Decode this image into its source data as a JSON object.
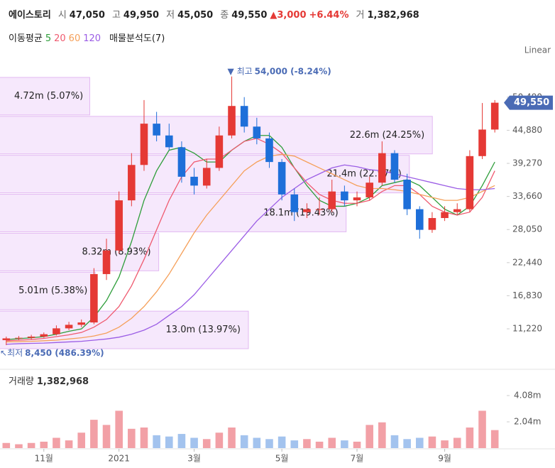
{
  "header": {
    "name": "에이스토리",
    "open_label": "시",
    "open": "47,050",
    "high_label": "고",
    "high": "49,950",
    "low_label": "저",
    "low": "45,050",
    "close_label": "종",
    "close": "49,550",
    "change": "▲3,000",
    "change_pct": "+6.44%",
    "volume_label": "거",
    "volume": "1,382,968",
    "ma_label": "이동평균",
    "profile_label": "매물분석도(7)",
    "scale": "Linear"
  },
  "chart_data": {
    "type": "candlestick",
    "categories": [
      null,
      null,
      null,
      "11월",
      null,
      null,
      null,
      null,
      null,
      "2021",
      null,
      null,
      null,
      null,
      null,
      "3월",
      null,
      null,
      null,
      null,
      null,
      null,
      "5월",
      null,
      null,
      null,
      null,
      null,
      "7월",
      null,
      null,
      null,
      null,
      null,
      null,
      "9월",
      null,
      null,
      null,
      null
    ],
    "open": [
      9300,
      9600,
      9700,
      9900,
      10300,
      11300,
      11900,
      12300,
      20500,
      24500,
      33000,
      39000,
      46000,
      44000,
      42000,
      37000,
      35500,
      38500,
      44000,
      49000,
      45500,
      43500,
      39500,
      34000,
      31000,
      31500,
      31500,
      34500,
      33000,
      33500,
      36000,
      41000,
      36500,
      31500,
      28000,
      30000,
      31000,
      31500,
      40500,
      45000
    ],
    "high": [
      9900,
      10000,
      10200,
      10600,
      11800,
      12400,
      12800,
      21500,
      26500,
      34500,
      41000,
      50000,
      48000,
      46000,
      43000,
      38500,
      40000,
      45500,
      54000,
      50500,
      47000,
      44500,
      40000,
      35000,
      32500,
      33500,
      36500,
      35500,
      34500,
      37000,
      43000,
      41500,
      37500,
      32000,
      31000,
      32000,
      32500,
      41500,
      49500,
      50000
    ],
    "low": [
      8450,
      9300,
      9400,
      9700,
      10100,
      11000,
      11500,
      12000,
      19500,
      24000,
      32000,
      38000,
      43000,
      41500,
      36000,
      34000,
      35000,
      38000,
      43500,
      44500,
      42500,
      38500,
      33000,
      29500,
      30000,
      30500,
      31000,
      32000,
      32000,
      33000,
      35500,
      36000,
      30500,
      26500,
      27500,
      29500,
      30500,
      31000,
      40000,
      44500
    ],
    "close": [
      9600,
      9700,
      9900,
      10300,
      11300,
      11900,
      12300,
      20500,
      24500,
      33000,
      39000,
      46000,
      44000,
      42000,
      37000,
      35500,
      38500,
      44000,
      49000,
      45500,
      43500,
      39500,
      34000,
      31000,
      31500,
      31500,
      34500,
      33000,
      33500,
      36000,
      41000,
      36500,
      31500,
      28000,
      30000,
      31000,
      31500,
      40500,
      45000,
      49550
    ],
    "up_color": "#e53935",
    "down_color": "#1e6fd9",
    "ylim": [
      4360,
      59740
    ],
    "yticks": [
      {
        "value": 11220,
        "label": "11,220"
      },
      {
        "value": 16830,
        "label": "16,830"
      },
      {
        "value": 22440,
        "label": "22,440"
      },
      {
        "value": 28050,
        "label": "28,050"
      },
      {
        "value": 33660,
        "label": "33,660"
      },
      {
        "value": 39270,
        "label": "39,270"
      },
      {
        "value": 44880,
        "label": "44,880"
      },
      {
        "value": 50490,
        "label": "50,490"
      }
    ],
    "series": [
      {
        "name": "5",
        "color": "#2e9e3a",
        "values": [
          9400,
          9550,
          9700,
          9900,
          10300,
          10800,
          11200,
          13200,
          16000,
          20000,
          26000,
          33000,
          38000,
          41500,
          42000,
          41000,
          39500,
          39500,
          41500,
          43000,
          44000,
          44000,
          42000,
          38500,
          35500,
          33000,
          32000,
          32000,
          32500,
          33500,
          35500,
          36000,
          36500,
          35500,
          33500,
          31500,
          30500,
          32000,
          35500,
          39500
        ]
      },
      {
        "name": "20",
        "color": "#ef5a6f",
        "values": [
          9200,
          9300,
          9400,
          9600,
          9900,
          10200,
          10600,
          11500,
          12800,
          15000,
          18500,
          23000,
          28000,
          33000,
          37000,
          39500,
          40000,
          40000,
          41500,
          43000,
          43500,
          42500,
          41000,
          38500,
          36000,
          34000,
          33000,
          32500,
          32500,
          33000,
          34500,
          35500,
          35500,
          34000,
          32000,
          31000,
          30500,
          31000,
          33500,
          38000
        ]
      },
      {
        "name": "60",
        "color": "#f5a05a",
        "values": [
          9000,
          9050,
          9100,
          9200,
          9300,
          9500,
          9700,
          10000,
          10500,
          11500,
          13000,
          15000,
          17500,
          20500,
          24000,
          27500,
          30500,
          33000,
          35500,
          38000,
          39500,
          40500,
          40800,
          40500,
          39500,
          38500,
          37500,
          36500,
          35500,
          35000,
          35000,
          34800,
          34500,
          34000,
          33500,
          33000,
          33000,
          33500,
          34500,
          35500
        ]
      },
      {
        "name": "120",
        "color": "#9b5de5",
        "values": [
          8600,
          8700,
          8750,
          8800,
          8900,
          9000,
          9100,
          9300,
          9500,
          9800,
          10300,
          11000,
          12000,
          13500,
          15000,
          17000,
          19500,
          22000,
          24500,
          27000,
          29500,
          31500,
          33500,
          35000,
          36500,
          37500,
          38500,
          39000,
          38700,
          38200,
          38000,
          37500,
          37000,
          36500,
          36000,
          35500,
          35000,
          34800,
          34800,
          35000
        ]
      }
    ],
    "volume_profile": {
      "values": [
        4.72,
        22.6,
        21.4,
        18.1,
        8.32,
        5.01,
        13.0
      ],
      "value_labels": [
        "4.72m (5.07%)",
        "22.6m (24.25%)",
        "21.4m (22.97%)",
        "18.1m (19.43%)",
        "8.32m (8.93%)",
        "5.01m (5.38%)",
        "13.0m (13.97%)"
      ],
      "color": "#f6e8fc"
    },
    "max_label": "최고",
    "max_text": "54,000 (-8.24%)",
    "min_label": "최저",
    "min_text": "8,450 (486.39%)",
    "volume": {
      "title": "거래량",
      "last": "1,382,968",
      "values": [
        0.4,
        0.3,
        0.4,
        0.5,
        0.8,
        0.6,
        1.2,
        2.2,
        1.8,
        2.9,
        1.5,
        1.6,
        1.0,
        0.9,
        1.1,
        0.8,
        0.7,
        1.2,
        1.6,
        1.0,
        0.8,
        0.7,
        0.9,
        0.6,
        0.7,
        0.5,
        0.8,
        0.6,
        0.5,
        1.8,
        2.0,
        1.0,
        0.7,
        0.8,
        0.9,
        0.6,
        0.8,
        1.6,
        2.9,
        1.4
      ],
      "ylim": [
        0,
        6.12
      ],
      "yticks": [
        {
          "value": 2.04,
          "label": "2.04m"
        },
        {
          "value": 4.08,
          "label": "4.08m"
        }
      ]
    },
    "grid": false
  }
}
